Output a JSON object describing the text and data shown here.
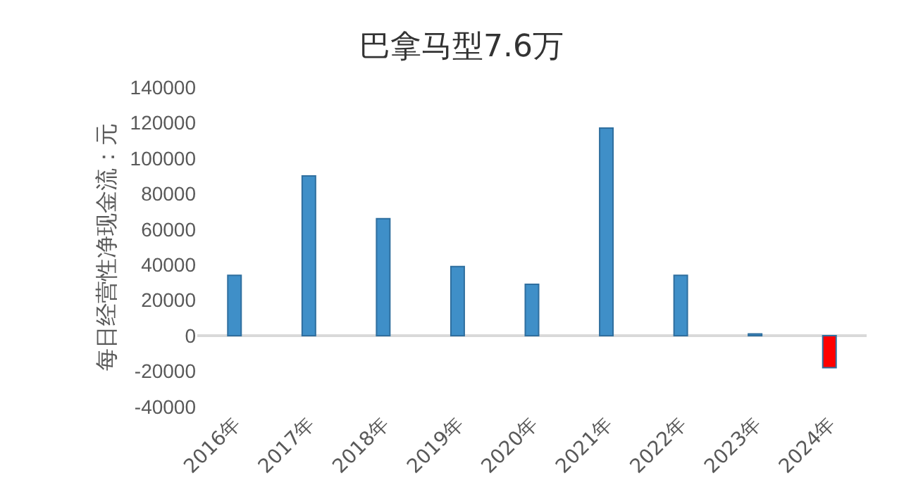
{
  "chart_data": {
    "type": "bar",
    "title": "巴拿马型7.6万",
    "ylabel": "每日经营性净现金流：元",
    "categories": [
      "2016年",
      "2017年",
      "2018年",
      "2019年",
      "2020年",
      "2021年",
      "2022年",
      "2023年",
      "2024年"
    ],
    "values": [
      34000,
      90000,
      66000,
      39000,
      29000,
      117000,
      34000,
      1000,
      -18000
    ],
    "colors": [
      "#3f8fc8",
      "#3f8fc8",
      "#3f8fc8",
      "#3f8fc8",
      "#3f8fc8",
      "#3f8fc8",
      "#3f8fc8",
      "#3f8fc8",
      "#ff0000"
    ],
    "ylim": [
      -40000,
      140000
    ],
    "yticks": [
      -40000,
      -20000,
      0,
      20000,
      40000,
      60000,
      80000,
      100000,
      120000,
      140000
    ],
    "legend": false
  }
}
